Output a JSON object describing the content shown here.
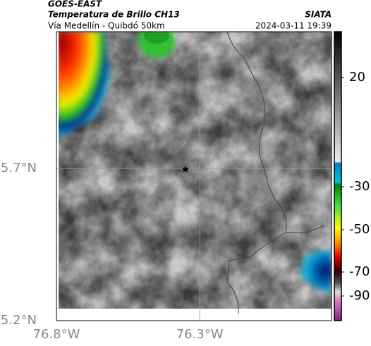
{
  "header": {
    "source": "GOES-EAST",
    "title": "Temperatura de Brillo CH13",
    "agency": "SIATA",
    "subtitle": "Vía Medellín - Quibdó 50km",
    "timestamp": "2024-03-11 19:39"
  },
  "map": {
    "xlim": [
      -76.8,
      -75.84
    ],
    "ylim": [
      5.2,
      6.15
    ],
    "xticks": [
      {
        "value": -76.8,
        "label": "76.8°W"
      },
      {
        "value": -76.3,
        "label": "76.3°W"
      }
    ],
    "yticks": [
      {
        "value": 5.2,
        "label": "5.2°N"
      },
      {
        "value": 5.7,
        "label": "5.7°N"
      }
    ]
  },
  "colorbar": {
    "ticks": [
      20,
      -30,
      -50,
      -70,
      -90
    ]
  }
}
